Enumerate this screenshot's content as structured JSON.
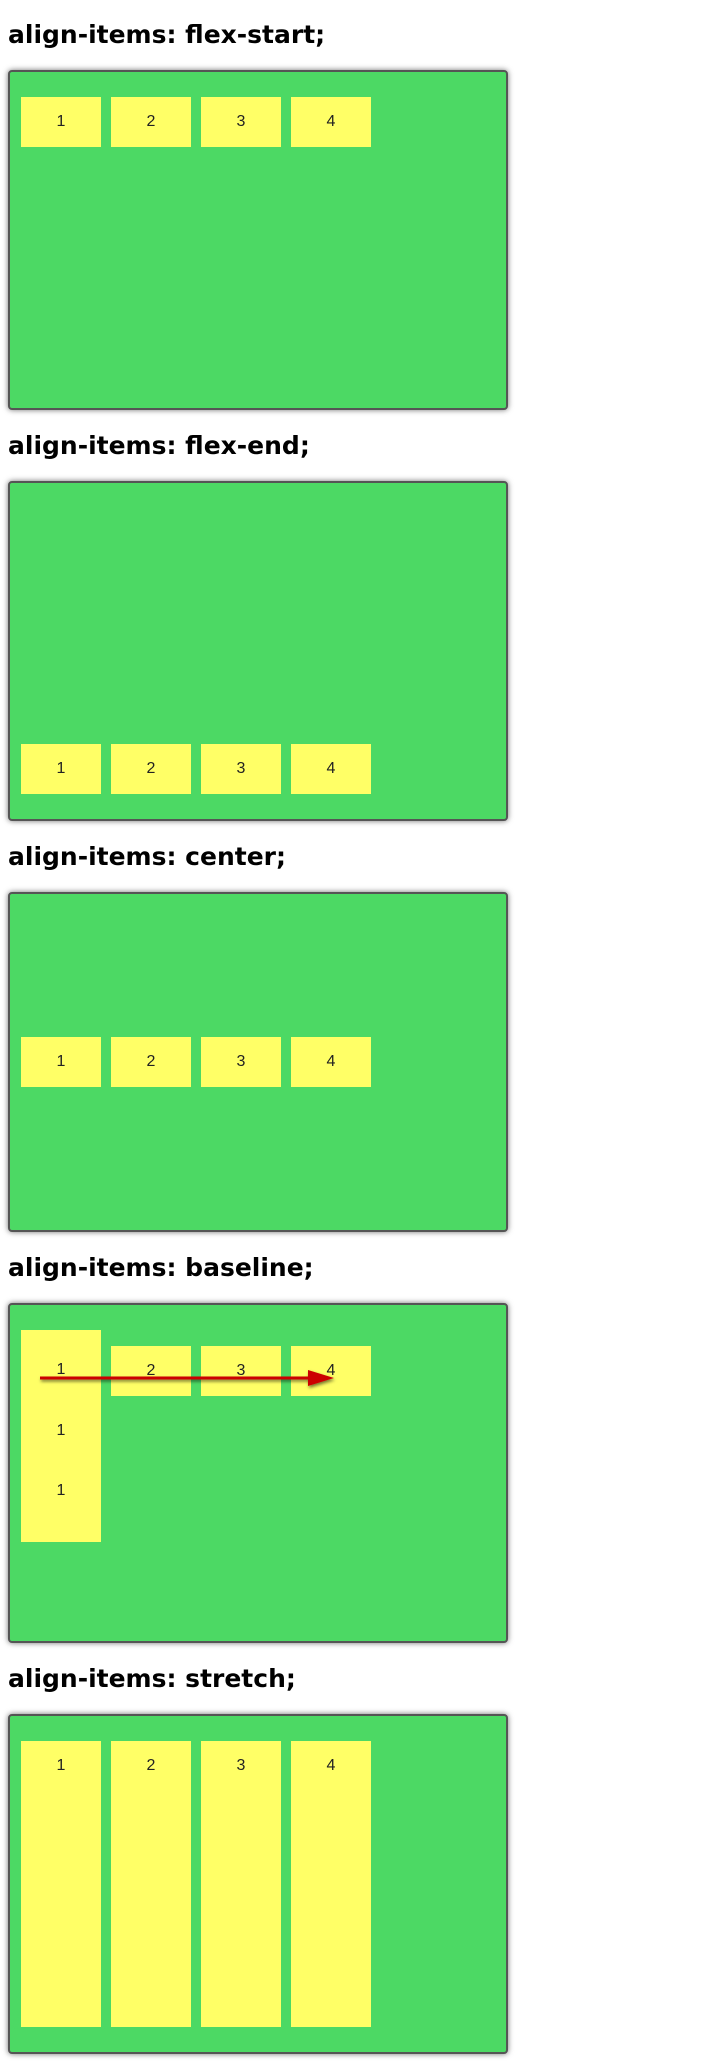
{
  "sections": [
    {
      "title": "align-items: flex-start;",
      "items": [
        "1",
        "2",
        "3",
        "4"
      ]
    },
    {
      "title": "align-items: flex-end;",
      "items": [
        "1",
        "2",
        "3",
        "4"
      ]
    },
    {
      "title": "align-items: center;",
      "items": [
        "1",
        "2",
        "3",
        "4"
      ]
    },
    {
      "title": "align-items: baseline;",
      "items": [
        "1",
        "2",
        "3",
        "4"
      ],
      "first_item_lines": [
        "1",
        "1",
        "1"
      ]
    },
    {
      "title": "align-items: stretch;",
      "items": [
        "1",
        "2",
        "3",
        "4"
      ]
    }
  ],
  "colors": {
    "container": "#4cd964",
    "item": "#ffff66",
    "arrow": "#cc0000"
  }
}
